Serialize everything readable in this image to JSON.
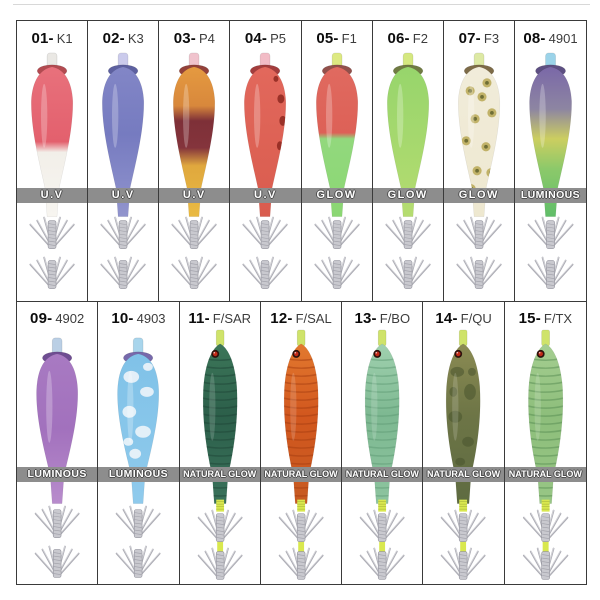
{
  "page": {
    "description": "Squid jig fishing lure catalog grid, 15 numbered color variants",
    "background": "#ffffff",
    "grid_line_color": "#3a3a3a",
    "top_rule_color": "#d8d8d8"
  },
  "banner": {
    "bg": "#8d8d8d",
    "text_color": "#ffffff",
    "outline_color": "#4e4e4e"
  },
  "label_separator": "-",
  "artwork": {
    "hook_main": "#acacb4",
    "hook_light": "#dadade",
    "hook_shank": "#c9c9cf",
    "hook_edge": "#90909a",
    "fish_nose": "#cfe36a",
    "fish_eye_outer": "#2e130e",
    "fish_eye_inner": "#c22a18",
    "fish_wrap": "#d9e84e",
    "fish_wrap_dark": "#a8b63c",
    "highlight": "#ffffff"
  },
  "rows": [
    {
      "items": [
        0,
        1,
        2,
        3,
        4,
        5,
        6,
        7
      ]
    },
    {
      "items": [
        8,
        9,
        10,
        11,
        12,
        13,
        14
      ]
    }
  ],
  "items": [
    {
      "num": "01",
      "code": "K1",
      "banner": "U.V",
      "type": "squid",
      "cap": "#eae8e4",
      "collar": "#b24a50",
      "body_stops": [
        [
          "0%",
          "#e8717c"
        ],
        [
          "50%",
          "#e3606d"
        ],
        [
          "57%",
          "#f2efe9"
        ],
        [
          "100%",
          "#f7f5f0"
        ]
      ],
      "pattern": {
        "type": "none"
      }
    },
    {
      "num": "02",
      "code": "K3",
      "banner": "U.V",
      "type": "squid",
      "cap": "#cbcbec",
      "collar": "#5d60a0",
      "body_stops": [
        [
          "0%",
          "#8286c6"
        ],
        [
          "45%",
          "#767bc0"
        ],
        [
          "100%",
          "#9194cd"
        ]
      ],
      "pattern": {
        "type": "none"
      }
    },
    {
      "num": "03",
      "code": "P4",
      "banner": "U.V",
      "type": "squid",
      "cap": "#f0c3cd",
      "collar": "#93413a",
      "body_stops": [
        [
          "0%",
          "#e59a40"
        ],
        [
          "26%",
          "#d8883c"
        ],
        [
          "36%",
          "#7e3038"
        ],
        [
          "54%",
          "#84343c"
        ],
        [
          "66%",
          "#e0a83e"
        ],
        [
          "100%",
          "#e9ba42"
        ]
      ],
      "pattern": {
        "type": "none"
      }
    },
    {
      "num": "04",
      "code": "P5",
      "banner": "U.V",
      "type": "squid",
      "cap": "#f2bcc6",
      "collar": "#a33d3d",
      "body_stops": [
        [
          "0%",
          "#e2685c"
        ],
        [
          "100%",
          "#d95c4e"
        ]
      ],
      "pattern": {
        "type": "spots",
        "color": "#8e2820"
      }
    },
    {
      "num": "05",
      "code": "F1",
      "banner": "GLOW",
      "type": "squid",
      "cap": "#dde982",
      "collar": "#92504b",
      "body_stops": [
        [
          "0%",
          "#e06a60"
        ],
        [
          "44%",
          "#dd6157"
        ],
        [
          "48%",
          "#92d87d"
        ],
        [
          "100%",
          "#8bd773"
        ]
      ],
      "pattern": {
        "type": "none"
      }
    },
    {
      "num": "06",
      "code": "F2",
      "banner": "GLOW",
      "type": "squid",
      "cap": "#d5e880",
      "collar": "#707b42",
      "body_stops": [
        [
          "0%",
          "#97d56c"
        ],
        [
          "100%",
          "#b5dc70"
        ]
      ],
      "pattern": {
        "type": "none"
      }
    },
    {
      "num": "07",
      "code": "F3",
      "banner": "GLOW",
      "type": "squid",
      "cap": "#dde9a4",
      "collar": "#7d6b48",
      "body_stops": [
        [
          "0%",
          "#f1ecda"
        ],
        [
          "100%",
          "#eee8d0"
        ]
      ],
      "pattern": {
        "type": "rings",
        "color": "#b9a855",
        "dot": "#6f6e35"
      }
    },
    {
      "num": "08",
      "code": "4901",
      "banner": "LUMINOUS",
      "type": "squid",
      "cap": "#9bd3e9",
      "collar": "#5d4f82",
      "body_stops": [
        [
          "0%",
          "#7a68a8"
        ],
        [
          "28%",
          "#8d85a2"
        ],
        [
          "48%",
          "#ccce60"
        ],
        [
          "68%",
          "#8cc96a"
        ],
        [
          "100%",
          "#60be69"
        ]
      ],
      "pattern": {
        "type": "none"
      }
    },
    {
      "num": "09",
      "code": "4902",
      "banner": "LUMINOUS",
      "type": "squid",
      "cap": "#bacfe5",
      "collar": "#6f4d92",
      "body_stops": [
        [
          "0%",
          "#a87ac2"
        ],
        [
          "50%",
          "#a271bd"
        ],
        [
          "100%",
          "#b88ccc"
        ]
      ],
      "pattern": {
        "type": "none"
      }
    },
    {
      "num": "10",
      "code": "4903",
      "banner": "LUMINOUS",
      "type": "squid",
      "cap": "#a8d5ec",
      "collar": "#7769ab",
      "body_stops": [
        [
          "0%",
          "#80c2e8"
        ],
        [
          "100%",
          "#8fcaec"
        ]
      ],
      "pattern": {
        "type": "clouds",
        "color": "#edf4fa"
      }
    },
    {
      "num": "11",
      "code": "F/SAR",
      "banner": "NATURAL GLOW",
      "type": "fish",
      "body_stops": [
        [
          "0%",
          "#3c7659"
        ],
        [
          "45%",
          "#2c5f4a"
        ],
        [
          "100%",
          "#3a725b"
        ]
      ],
      "pattern": {
        "type": "stripes",
        "color": "#1d4336"
      }
    },
    {
      "num": "12",
      "code": "F/SAL",
      "banner": "NATURAL GLOW",
      "type": "fish",
      "body_stops": [
        [
          "0%",
          "#e2792f"
        ],
        [
          "45%",
          "#d2571e"
        ],
        [
          "100%",
          "#c75b22"
        ]
      ],
      "pattern": {
        "type": "stripes",
        "color": "#a33c10"
      }
    },
    {
      "num": "13",
      "code": "F/BO",
      "banner": "NATURAL GLOW",
      "type": "fish",
      "body_stops": [
        [
          "0%",
          "#a0d1af"
        ],
        [
          "45%",
          "#7db891"
        ],
        [
          "100%",
          "#8dc49f"
        ]
      ],
      "pattern": {
        "type": "stripes",
        "color": "#5d9a74"
      }
    },
    {
      "num": "14",
      "code": "F/QU",
      "banner": "NATURAL GLOW",
      "type": "fish",
      "body_stops": [
        [
          "0%",
          "#8b8b53"
        ],
        [
          "45%",
          "#6d7546"
        ],
        [
          "100%",
          "#5e6b41"
        ]
      ],
      "pattern": {
        "type": "camo",
        "color": "#49532e"
      }
    },
    {
      "num": "15",
      "code": "F/TX",
      "banner": "NATURAL GLOW",
      "type": "fish",
      "body_stops": [
        [
          "0%",
          "#a5ce91"
        ],
        [
          "45%",
          "#8dbe7b"
        ],
        [
          "100%",
          "#98c685"
        ]
      ],
      "pattern": {
        "type": "stripes",
        "color": "#568c52"
      }
    }
  ]
}
